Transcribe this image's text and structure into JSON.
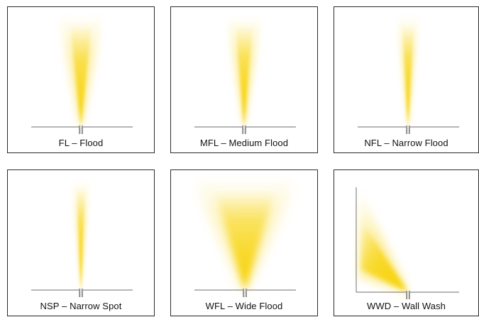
{
  "panels": [
    {
      "label": "FL – Flood",
      "beam": "flood"
    },
    {
      "label": "MFL – Medium Flood",
      "beam": "medium-flood"
    },
    {
      "label": "NFL – Narrow Flood",
      "beam": "narrow-flood"
    },
    {
      "label": "NSP – Narrow Spot",
      "beam": "narrow-spot"
    },
    {
      "label": "WFL – Wide Flood",
      "beam": "wide-flood"
    },
    {
      "label": "WWD – Wall Wash",
      "beam": "wall-wash"
    }
  ],
  "colors": {
    "beam": "#f7d100",
    "ground": "#8a8a8a",
    "fixture": "#9a9a9a",
    "border": "#2b2b2b"
  }
}
